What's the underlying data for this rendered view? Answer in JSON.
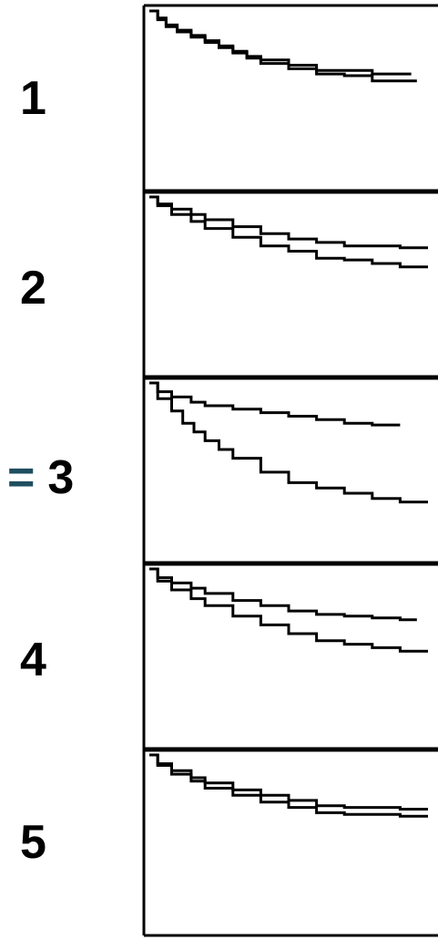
{
  "colors": {
    "line": "#000000",
    "prefix": "#1f4e5f"
  },
  "panels": [
    {
      "label": "1",
      "prefix": ""
    },
    {
      "label": "2",
      "prefix": ""
    },
    {
      "label": "3",
      "prefix": "="
    },
    {
      "label": "4",
      "prefix": ""
    },
    {
      "label": "5",
      "prefix": ""
    }
  ],
  "chart_data": [
    {
      "type": "line",
      "title": "",
      "xlabel": "",
      "ylabel": "",
      "xlim": [
        0,
        10
      ],
      "ylim": [
        0.5,
        1.0
      ],
      "grid": false,
      "series": [
        {
          "name": "",
          "x": [
            0,
            0.3,
            0.6,
            1.0,
            1.5,
            2.0,
            2.5,
            3.0,
            3.5,
            4.0,
            5.0,
            6.0,
            7.0,
            8.0,
            9.0,
            9.4
          ],
          "y": [
            1.0,
            0.98,
            0.96,
            0.945,
            0.93,
            0.915,
            0.9,
            0.885,
            0.87,
            0.86,
            0.845,
            0.83,
            0.83,
            0.82,
            0.82,
            0.82
          ]
        },
        {
          "name": "",
          "x": [
            0,
            0.3,
            0.6,
            1.0,
            1.5,
            2.0,
            2.5,
            3.0,
            3.5,
            4.0,
            5.0,
            6.0,
            7.0,
            8.0,
            9.0,
            9.6
          ],
          "y": [
            1.0,
            0.975,
            0.955,
            0.94,
            0.925,
            0.91,
            0.895,
            0.88,
            0.865,
            0.85,
            0.835,
            0.82,
            0.815,
            0.8,
            0.8,
            0.8
          ]
        }
      ]
    },
    {
      "type": "line",
      "title": "",
      "xlabel": "",
      "ylabel": "",
      "xlim": [
        0,
        10
      ],
      "ylim": [
        0.5,
        1.0
      ],
      "grid": false,
      "series": [
        {
          "name": "",
          "x": [
            0,
            0.3,
            0.8,
            1.5,
            2.0,
            3.0,
            4.0,
            5.0,
            6.0,
            7.0,
            8.0,
            9.0,
            10.0
          ],
          "y": [
            1.0,
            0.98,
            0.965,
            0.95,
            0.935,
            0.915,
            0.895,
            0.88,
            0.87,
            0.86,
            0.86,
            0.855,
            0.855
          ]
        },
        {
          "name": "",
          "x": [
            0,
            0.3,
            0.8,
            1.5,
            2.0,
            3.0,
            4.0,
            5.0,
            6.0,
            7.0,
            8.0,
            9.0,
            10.0
          ],
          "y": [
            1.0,
            0.975,
            0.95,
            0.93,
            0.91,
            0.885,
            0.86,
            0.845,
            0.825,
            0.82,
            0.81,
            0.8,
            0.8
          ]
        }
      ]
    },
    {
      "type": "line",
      "title": "",
      "xlabel": "",
      "ylabel": "",
      "xlim": [
        0,
        10
      ],
      "ylim": [
        0.5,
        1.0
      ],
      "grid": false,
      "series": [
        {
          "name": "",
          "x": [
            0,
            0.3,
            0.8,
            1.5,
            2.0,
            3.0,
            4.0,
            5.0,
            6.0,
            7.0,
            8.0,
            9.0
          ],
          "y": [
            1.0,
            0.975,
            0.96,
            0.945,
            0.935,
            0.925,
            0.915,
            0.905,
            0.895,
            0.885,
            0.88,
            0.88
          ]
        },
        {
          "name": "",
          "x": [
            0,
            0.3,
            0.8,
            1.2,
            1.6,
            2.0,
            2.5,
            3.0,
            4.0,
            5.0,
            6.0,
            7.0,
            8.0,
            9.0,
            10.0
          ],
          "y": [
            1.0,
            0.955,
            0.92,
            0.885,
            0.86,
            0.835,
            0.81,
            0.785,
            0.745,
            0.715,
            0.7,
            0.685,
            0.67,
            0.66,
            0.66
          ]
        }
      ]
    },
    {
      "type": "line",
      "title": "",
      "xlabel": "",
      "ylabel": "",
      "xlim": [
        0,
        10
      ],
      "ylim": [
        0.5,
        1.0
      ],
      "grid": false,
      "series": [
        {
          "name": "",
          "x": [
            0,
            0.3,
            0.8,
            1.5,
            2.0,
            3.0,
            4.0,
            5.0,
            6.0,
            7.0,
            8.0,
            9.0,
            9.6
          ],
          "y": [
            1.0,
            0.975,
            0.96,
            0.945,
            0.93,
            0.91,
            0.895,
            0.88,
            0.87,
            0.865,
            0.86,
            0.855,
            0.855
          ]
        },
        {
          "name": "",
          "x": [
            0,
            0.3,
            0.8,
            1.5,
            2.0,
            3.0,
            4.0,
            5.0,
            6.0,
            7.0,
            8.0,
            9.0,
            10.0
          ],
          "y": [
            1.0,
            0.965,
            0.94,
            0.915,
            0.895,
            0.865,
            0.84,
            0.815,
            0.795,
            0.785,
            0.775,
            0.765,
            0.765
          ]
        }
      ]
    },
    {
      "type": "line",
      "title": "",
      "xlabel": "",
      "ylabel": "",
      "xlim": [
        0,
        10
      ],
      "ylim": [
        0.5,
        1.0
      ],
      "grid": false,
      "series": [
        {
          "name": "",
          "x": [
            0,
            0.3,
            0.8,
            1.5,
            2.0,
            3.0,
            4.0,
            5.0,
            6.0,
            7.0,
            8.0,
            9.0,
            10.0
          ],
          "y": [
            1.0,
            0.975,
            0.955,
            0.935,
            0.92,
            0.9,
            0.885,
            0.87,
            0.855,
            0.85,
            0.85,
            0.845,
            0.845
          ]
        },
        {
          "name": "",
          "x": [
            0,
            0.3,
            0.8,
            1.5,
            2.0,
            3.0,
            4.0,
            5.0,
            6.0,
            7.0,
            8.0,
            9.0,
            10.0
          ],
          "y": [
            1.0,
            0.97,
            0.945,
            0.925,
            0.905,
            0.885,
            0.865,
            0.85,
            0.835,
            0.83,
            0.83,
            0.825,
            0.825
          ]
        }
      ]
    }
  ]
}
